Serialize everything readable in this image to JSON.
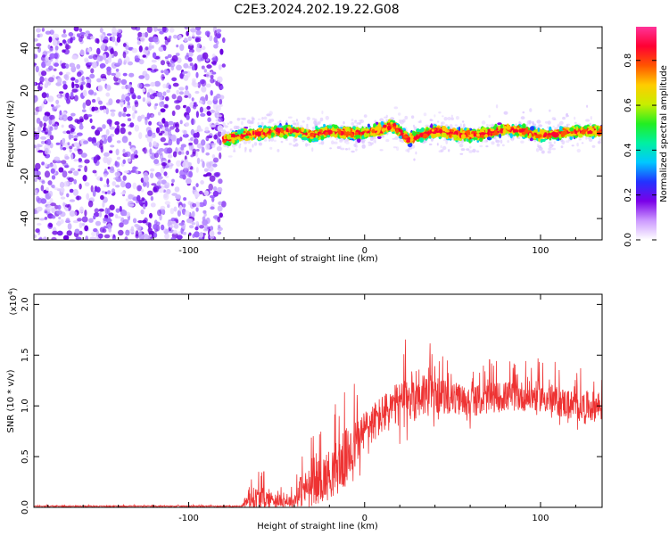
{
  "title": "C2E3.2024.202.19.22.G08",
  "chart_data": [
    {
      "type": "heatmap",
      "xlabel": "Height of straight line (km)",
      "ylabel": "Frequency (Hz)",
      "xlim": [
        -188,
        135
      ],
      "ylim": [
        -50,
        50
      ],
      "xticks": [
        -100,
        0,
        100
      ],
      "xtick_labels": [
        "-100",
        "0",
        "100"
      ],
      "yticks": [
        -40,
        -20,
        0,
        20,
        40
      ],
      "ytick_labels": [
        "-40",
        "-20",
        "0",
        "20",
        "40"
      ],
      "colorbar": {
        "label": "Normalized spectral amplitude",
        "range": [
          0,
          0.95
        ],
        "ticks": [
          0.0,
          0.2,
          0.4,
          0.6,
          0.8
        ],
        "tick_labels": [
          "0.0",
          "0.2",
          "0.4",
          "0.6",
          "0.8"
        ],
        "colors": [
          "#ffffff",
          "#cc99ff",
          "#7a00e8",
          "#2233ff",
          "#00c8ff",
          "#00f0a0",
          "#22ee22",
          "#c8ee00",
          "#ffcc00",
          "#ff5500",
          "#ff0033",
          "#ff3399"
        ]
      },
      "noise_region_x": [
        -188,
        -80
      ],
      "signal_region_x": [
        -80,
        135
      ],
      "signal_center_hz": [
        {
          "x": -80,
          "y": -3
        },
        {
          "x": -70,
          "y": -1
        },
        {
          "x": -60,
          "y": 0
        },
        {
          "x": -50,
          "y": 1
        },
        {
          "x": -40,
          "y": 1
        },
        {
          "x": -30,
          "y": -1
        },
        {
          "x": -20,
          "y": 1
        },
        {
          "x": -10,
          "y": 0
        },
        {
          "x": 0,
          "y": 0
        },
        {
          "x": 10,
          "y": 2
        },
        {
          "x": 15,
          "y": 4
        },
        {
          "x": 20,
          "y": 1
        },
        {
          "x": 25,
          "y": -3
        },
        {
          "x": 30,
          "y": -1
        },
        {
          "x": 40,
          "y": 1
        },
        {
          "x": 50,
          "y": 0
        },
        {
          "x": 60,
          "y": -1
        },
        {
          "x": 70,
          "y": 0
        },
        {
          "x": 80,
          "y": 2
        },
        {
          "x": 90,
          "y": 1
        },
        {
          "x": 100,
          "y": -1
        },
        {
          "x": 110,
          "y": 0
        },
        {
          "x": 120,
          "y": 1
        },
        {
          "x": 135,
          "y": 1
        }
      ]
    },
    {
      "type": "line",
      "xlabel": "Height of straight line (km)",
      "ylabel": "SNR (10 * v/v)",
      "scale_label": "(x10",
      "scale_exponent": "4",
      "scale_suffix": ")",
      "xlim": [
        -188,
        135
      ],
      "ylim": [
        0,
        2.1
      ],
      "xticks": [
        -100,
        0,
        100
      ],
      "xtick_labels": [
        "-100",
        "0",
        "100"
      ],
      "yticks": [
        0.0,
        0.5,
        1.0,
        1.5,
        2.0
      ],
      "ytick_labels": [
        "0.0",
        "0.5",
        "1.0",
        "1.5",
        "2.0"
      ],
      "color": "#ee3333",
      "envelope": [
        {
          "x": -188,
          "base": 0.01,
          "amp": 0.01
        },
        {
          "x": -70,
          "base": 0.01,
          "amp": 0.01
        },
        {
          "x": -68,
          "base": 0.04,
          "amp": 0.1
        },
        {
          "x": -60,
          "base": 0.06,
          "amp": 0.25
        },
        {
          "x": -50,
          "base": 0.05,
          "amp": 0.12
        },
        {
          "x": -40,
          "base": 0.04,
          "amp": 0.12
        },
        {
          "x": -38,
          "base": 0.1,
          "amp": 0.3
        },
        {
          "x": -30,
          "base": 0.15,
          "amp": 0.4
        },
        {
          "x": -20,
          "base": 0.25,
          "amp": 0.5
        },
        {
          "x": -10,
          "base": 0.4,
          "amp": 0.6
        },
        {
          "x": 0,
          "base": 0.7,
          "amp": 0.4
        },
        {
          "x": 10,
          "base": 0.85,
          "amp": 0.4
        },
        {
          "x": 20,
          "base": 0.95,
          "amp": 0.45
        },
        {
          "x": 30,
          "base": 1.05,
          "amp": 0.55
        },
        {
          "x": 40,
          "base": 1.05,
          "amp": 0.35
        },
        {
          "x": 60,
          "base": 1.0,
          "amp": 0.3
        },
        {
          "x": 80,
          "base": 1.05,
          "amp": 0.3
        },
        {
          "x": 100,
          "base": 1.05,
          "amp": 0.3
        },
        {
          "x": 120,
          "base": 0.95,
          "amp": 0.3
        },
        {
          "x": 135,
          "base": 0.95,
          "amp": 0.3
        }
      ]
    }
  ]
}
